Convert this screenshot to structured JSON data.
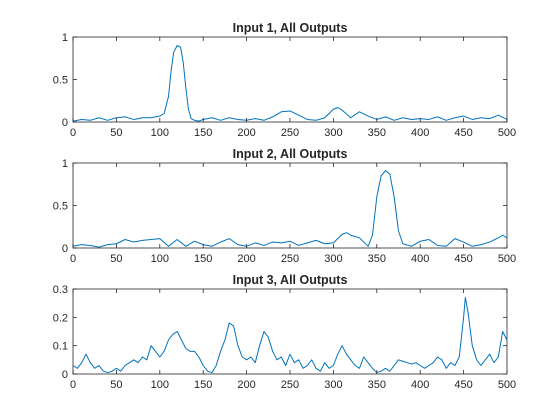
{
  "chart_data": [
    {
      "type": "line",
      "title": "Input 1, All Outputs",
      "xlim": [
        0,
        500
      ],
      "ylim": [
        0,
        1
      ],
      "xticks": [
        "0",
        "50",
        "100",
        "150",
        "200",
        "250",
        "300",
        "350",
        "400",
        "450",
        "500"
      ],
      "yticks": [
        "0",
        "0.5",
        "1"
      ],
      "grid": false,
      "color": "#0072BD",
      "x": [
        0,
        10,
        20,
        30,
        40,
        50,
        60,
        70,
        80,
        90,
        100,
        105,
        110,
        113,
        116,
        120,
        124,
        127,
        130,
        133,
        136,
        140,
        145,
        150,
        160,
        170,
        180,
        190,
        200,
        210,
        220,
        230,
        240,
        250,
        260,
        270,
        280,
        290,
        300,
        305,
        310,
        320,
        330,
        340,
        350,
        360,
        370,
        380,
        390,
        400,
        410,
        420,
        430,
        440,
        450,
        460,
        470,
        480,
        490,
        500
      ],
      "values": [
        0.01,
        0.03,
        0.02,
        0.05,
        0.02,
        0.05,
        0.06,
        0.03,
        0.05,
        0.05,
        0.07,
        0.1,
        0.3,
        0.6,
        0.82,
        0.9,
        0.88,
        0.7,
        0.4,
        0.15,
        0.04,
        0.02,
        0.01,
        0.03,
        0.05,
        0.02,
        0.05,
        0.03,
        0.02,
        0.04,
        0.02,
        0.06,
        0.12,
        0.13,
        0.08,
        0.03,
        0.02,
        0.05,
        0.15,
        0.17,
        0.14,
        0.05,
        0.12,
        0.07,
        0.03,
        0.06,
        0.02,
        0.05,
        0.03,
        0.04,
        0.03,
        0.06,
        0.02,
        0.05,
        0.07,
        0.03,
        0.05,
        0.04,
        0.08,
        0.03
      ]
    },
    {
      "type": "line",
      "title": "Input 2, All Outputs",
      "xlim": [
        0,
        500
      ],
      "ylim": [
        0,
        1
      ],
      "xticks": [
        "0",
        "50",
        "100",
        "150",
        "200",
        "250",
        "300",
        "350",
        "400",
        "450",
        "500"
      ],
      "yticks": [
        "0",
        "0.5",
        "1"
      ],
      "grid": false,
      "color": "#0072BD",
      "x": [
        0,
        10,
        20,
        30,
        40,
        50,
        60,
        70,
        80,
        90,
        100,
        110,
        120,
        130,
        140,
        150,
        160,
        170,
        180,
        190,
        200,
        210,
        220,
        230,
        240,
        250,
        260,
        270,
        280,
        290,
        300,
        310,
        315,
        320,
        330,
        340,
        345,
        350,
        355,
        360,
        365,
        370,
        375,
        380,
        390,
        400,
        410,
        420,
        430,
        440,
        450,
        460,
        470,
        480,
        490,
        495,
        500
      ],
      "values": [
        0.02,
        0.04,
        0.03,
        0.01,
        0.04,
        0.05,
        0.1,
        0.07,
        0.09,
        0.1,
        0.11,
        0.02,
        0.1,
        0.02,
        0.08,
        0.04,
        0.02,
        0.07,
        0.11,
        0.04,
        0.02,
        0.06,
        0.03,
        0.07,
        0.06,
        0.08,
        0.03,
        0.06,
        0.09,
        0.05,
        0.06,
        0.16,
        0.18,
        0.15,
        0.12,
        0.02,
        0.15,
        0.6,
        0.85,
        0.91,
        0.87,
        0.6,
        0.2,
        0.05,
        0.02,
        0.08,
        0.1,
        0.03,
        0.02,
        0.11,
        0.07,
        0.02,
        0.04,
        0.07,
        0.12,
        0.15,
        0.12
      ]
    },
    {
      "type": "line",
      "title": "Input 3, All Outputs",
      "xlim": [
        0,
        500
      ],
      "ylim": [
        0,
        0.3
      ],
      "xticks": [
        "0",
        "50",
        "100",
        "150",
        "200",
        "250",
        "300",
        "350",
        "400",
        "450",
        "500"
      ],
      "yticks": [
        "0",
        "0.1",
        "0.2",
        "0.3"
      ],
      "grid": false,
      "color": "#0072BD",
      "x": [
        0,
        5,
        10,
        15,
        20,
        25,
        30,
        35,
        40,
        45,
        50,
        55,
        60,
        65,
        70,
        75,
        80,
        85,
        90,
        95,
        100,
        105,
        110,
        115,
        120,
        125,
        130,
        135,
        140,
        145,
        150,
        155,
        160,
        165,
        170,
        175,
        180,
        185,
        190,
        195,
        200,
        205,
        210,
        215,
        220,
        225,
        230,
        235,
        240,
        245,
        250,
        255,
        260,
        265,
        270,
        275,
        280,
        285,
        290,
        295,
        300,
        305,
        310,
        315,
        320,
        325,
        330,
        335,
        340,
        345,
        350,
        355,
        360,
        365,
        370,
        375,
        380,
        385,
        390,
        395,
        400,
        405,
        410,
        415,
        420,
        425,
        430,
        435,
        440,
        445,
        450,
        452,
        455,
        460,
        465,
        470,
        475,
        480,
        485,
        490,
        495,
        500
      ],
      "values": [
        0.03,
        0.02,
        0.04,
        0.07,
        0.04,
        0.02,
        0.03,
        0.01,
        0.005,
        0.01,
        0.02,
        0.01,
        0.03,
        0.04,
        0.05,
        0.04,
        0.06,
        0.05,
        0.1,
        0.08,
        0.06,
        0.08,
        0.12,
        0.14,
        0.15,
        0.12,
        0.09,
        0.08,
        0.08,
        0.06,
        0.03,
        0.01,
        0.005,
        0.03,
        0.08,
        0.12,
        0.18,
        0.17,
        0.1,
        0.06,
        0.05,
        0.06,
        0.04,
        0.1,
        0.15,
        0.13,
        0.08,
        0.05,
        0.06,
        0.03,
        0.07,
        0.04,
        0.05,
        0.02,
        0.03,
        0.05,
        0.02,
        0.01,
        0.04,
        0.02,
        0.03,
        0.07,
        0.1,
        0.07,
        0.05,
        0.03,
        0.02,
        0.06,
        0.04,
        0.02,
        0.005,
        0.01,
        0.02,
        0.01,
        0.03,
        0.05,
        0.045,
        0.04,
        0.035,
        0.04,
        0.03,
        0.02,
        0.03,
        0.04,
        0.06,
        0.05,
        0.02,
        0.04,
        0.03,
        0.06,
        0.2,
        0.27,
        0.22,
        0.1,
        0.05,
        0.03,
        0.05,
        0.07,
        0.04,
        0.06,
        0.15,
        0.12
      ]
    }
  ]
}
